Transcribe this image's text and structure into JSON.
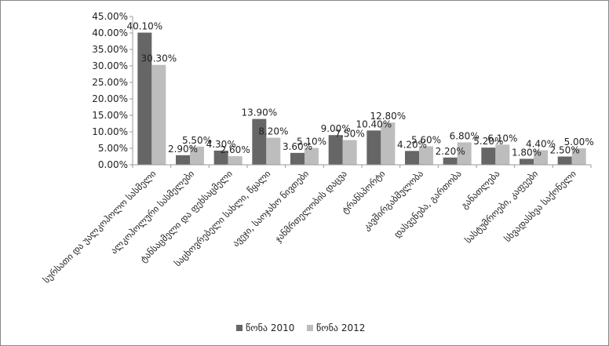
{
  "chart_data": {
    "type": "bar",
    "categories": [
      "სურსათი და უალკოჰოლო სასმელი",
      "ალკოჰოლური სასმელები",
      "ტანსაცმელი და ფეხსაცმელი",
      "საცხოვრებელი სახლი, წყალი",
      "ავეჯი, საოჯახო ნივთები",
      "ჯანმრთელობის დაცვა",
      "ტრანსპორტი",
      "კავშირგაბმულობა",
      "დასვენება, გართობა",
      "განათლება",
      "სასტუმროები, კაფეები",
      "სხვადასხვა საქონელი"
    ],
    "series": [
      {
        "name": "წონა 2010",
        "color": "#666666",
        "values": [
          40.1,
          2.9,
          4.3,
          13.9,
          3.6,
          9.0,
          10.4,
          4.2,
          2.2,
          5.2,
          1.8,
          2.5
        ],
        "labels": [
          "40.10%",
          "2.90%",
          "4.30%",
          "13.90%",
          "3.60%",
          "9.00%",
          "10.40%",
          "4.20%",
          "2.20%",
          "5.20%",
          "1.80%",
          "2.50%"
        ]
      },
      {
        "name": "წონა 2012",
        "color": "#bdbdbd",
        "values": [
          30.3,
          5.5,
          2.6,
          8.2,
          5.1,
          7.5,
          12.8,
          5.6,
          6.8,
          6.1,
          4.4,
          5.0
        ],
        "labels": [
          "30.30%",
          "5.50%",
          "2.60%",
          "8.20%",
          "5.10%",
          "7.50%",
          "12.80%",
          "5.60%",
          "6.80%",
          "6.10%",
          "4.40%",
          "5.00%"
        ]
      }
    ],
    "ylim": [
      0,
      45
    ],
    "yticks": [
      0,
      5,
      10,
      15,
      20,
      25,
      30,
      35,
      40,
      45
    ],
    "ytick_labels": [
      "0.00%",
      "5.00%",
      "10.00%",
      "15.00%",
      "20.00%",
      "25.00%",
      "30.00%",
      "35.00%",
      "40.00%",
      "45.00%"
    ],
    "grid": false,
    "legend_position": "bottom",
    "title": "",
    "xlabel": "",
    "ylabel": ""
  }
}
